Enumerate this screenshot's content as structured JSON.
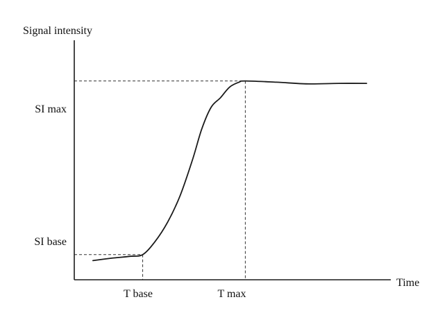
{
  "chart_data": {
    "type": "line",
    "ylabel": "Signal intensity",
    "xlabel": "Time",
    "xlim": [
      0,
      10
    ],
    "ylim": [
      0,
      10
    ],
    "y_tick_labels": [
      "SI base",
      "SI max"
    ],
    "x_tick_labels": [
      "T base",
      "T max"
    ],
    "key_points": {
      "t_base": 2.2,
      "t_max": 5.5,
      "si_base": 1.05,
      "si_max": 8.3
    },
    "series": [
      {
        "x": [
          0.6,
          1.2,
          1.8,
          2.2,
          2.6,
          3.0,
          3.4,
          3.8,
          4.1,
          4.4,
          4.7,
          5.0,
          5.3,
          5.5,
          6.5,
          7.5,
          8.5,
          9.4
        ],
        "y": [
          0.8,
          0.9,
          0.98,
          1.05,
          1.6,
          2.4,
          3.5,
          5.0,
          6.3,
          7.2,
          7.6,
          8.05,
          8.25,
          8.3,
          8.25,
          8.18,
          8.2,
          8.2
        ]
      }
    ],
    "grid": false,
    "legend": "none"
  }
}
